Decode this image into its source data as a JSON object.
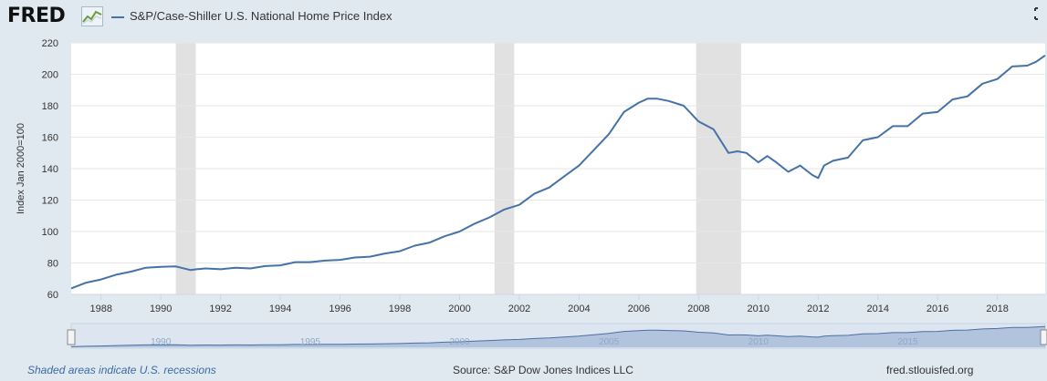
{
  "header": {
    "logo_text": "FRED",
    "series_name": "S&P/Case-Shiller U.S. National Home Price Index"
  },
  "footer": {
    "recession_note": "Shaded areas indicate U.S. recessions",
    "source": "Source: S&P Dow Jones Indices LLC",
    "site": "fred.stlouisfed.org"
  },
  "colors": {
    "line": "#4572a7",
    "recession": "#e1e1e1",
    "grid": "#e6e6e6",
    "navigator_fill": "#9fb4d4",
    "navigator_line": "#4a6fa5"
  },
  "chart_data": {
    "type": "line",
    "title": "S&P/Case-Shiller U.S. National Home Price Index",
    "xlabel": "",
    "ylabel": "Index Jan 2000=100",
    "xlim": [
      1987.0,
      2019.6
    ],
    "ylim": [
      60,
      220
    ],
    "yticks": [
      60,
      80,
      100,
      120,
      140,
      160,
      180,
      200,
      220
    ],
    "xticks": [
      1988,
      1990,
      1992,
      1994,
      1996,
      1998,
      2000,
      2002,
      2004,
      2006,
      2008,
      2010,
      2012,
      2014,
      2016,
      2018
    ],
    "grid": true,
    "recessions": [
      [
        1990.5,
        1991.17
      ],
      [
        2001.17,
        2001.83
      ],
      [
        2007.92,
        2009.42
      ]
    ],
    "navigator_labels": [
      "1990",
      "1995",
      "2000",
      "2005",
      "2010",
      "2015"
    ],
    "navigator_label_years": [
      1990,
      1995,
      2000,
      2005,
      2010,
      2015
    ],
    "series": [
      {
        "name": "S&P/Case-Shiller U.S. National Home Price Index",
        "x": [
          1987.0,
          1987.5,
          1988.0,
          1988.5,
          1989.0,
          1989.5,
          1990.0,
          1990.5,
          1991.0,
          1991.2,
          1991.5,
          1992.0,
          1992.5,
          1993.0,
          1993.5,
          1994.0,
          1994.5,
          1995.0,
          1995.5,
          1996.0,
          1996.5,
          1997.0,
          1997.5,
          1998.0,
          1998.5,
          1999.0,
          1999.5,
          2000.0,
          2000.5,
          2001.0,
          2001.5,
          2002.0,
          2002.5,
          2003.0,
          2003.5,
          2004.0,
          2004.5,
          2005.0,
          2005.5,
          2006.0,
          2006.3,
          2006.6,
          2007.0,
          2007.5,
          2008.0,
          2008.5,
          2009.0,
          2009.3,
          2009.6,
          2010.0,
          2010.3,
          2010.6,
          2011.0,
          2011.4,
          2011.8,
          2012.0,
          2012.2,
          2012.5,
          2013.0,
          2013.5,
          2014.0,
          2014.5,
          2015.0,
          2015.5,
          2016.0,
          2016.5,
          2017.0,
          2017.5,
          2018.0,
          2018.5,
          2019.0,
          2019.3,
          2019.6
        ],
        "values": [
          63.8,
          67.5,
          69.5,
          72.5,
          74.5,
          77.0,
          77.5,
          77.8,
          75.5,
          76.0,
          76.5,
          76.0,
          77.0,
          76.5,
          78.0,
          78.5,
          80.5,
          80.5,
          81.5,
          82.0,
          83.5,
          84.0,
          86.0,
          87.5,
          91.0,
          93.0,
          97.0,
          100.0,
          105.0,
          109.0,
          114.0,
          117.0,
          124.0,
          128.0,
          135.0,
          142.0,
          152.0,
          162.0,
          176.0,
          182.0,
          184.5,
          184.5,
          183.0,
          180.0,
          170.0,
          165.0,
          150.0,
          151.0,
          150.0,
          144.0,
          148.0,
          144.0,
          138.0,
          142.0,
          136.0,
          134.0,
          142.0,
          145.0,
          147.0,
          158.0,
          160.0,
          167.0,
          167.0,
          175.0,
          176.0,
          184.0,
          186.0,
          194.0,
          197.0,
          205.0,
          205.5,
          208.0,
          212.0
        ]
      }
    ]
  }
}
